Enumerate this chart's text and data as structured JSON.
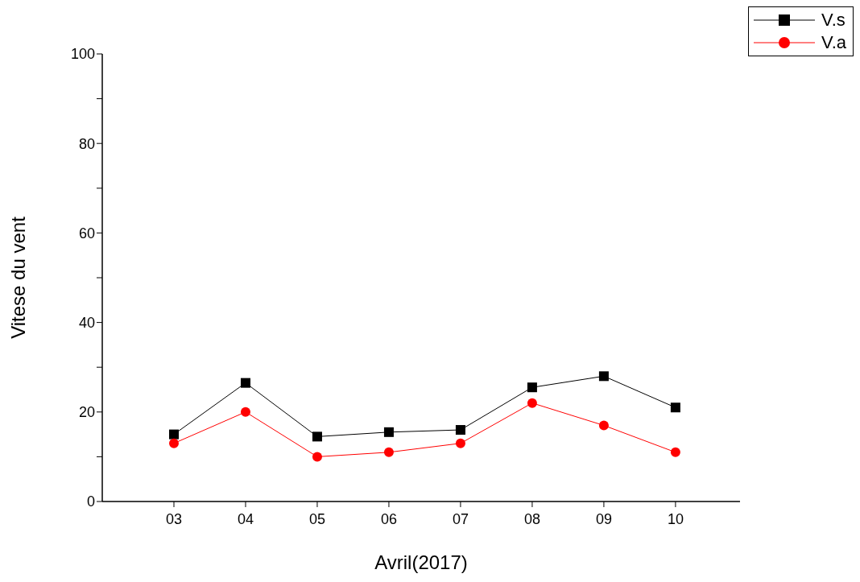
{
  "chart_data": {
    "type": "line",
    "xlabel": "Avril(2017)",
    "ylabel": "Vitese du vent",
    "x": [
      3,
      4,
      5,
      6,
      7,
      8,
      9,
      10
    ],
    "xlim": [
      2,
      10.9
    ],
    "xticks": [
      {
        "value": 3,
        "label": "03"
      },
      {
        "value": 4,
        "label": "04"
      },
      {
        "value": 5,
        "label": "05"
      },
      {
        "value": 6,
        "label": "06"
      },
      {
        "value": 7,
        "label": "07"
      },
      {
        "value": 8,
        "label": "08"
      },
      {
        "value": 9,
        "label": "09"
      },
      {
        "value": 10,
        "label": "10"
      }
    ],
    "ylim": [
      0,
      100
    ],
    "yticks": [
      0,
      {
        "value": 10,
        "label": null
      },
      20,
      {
        "value": 30,
        "label": null
      },
      40,
      {
        "value": 50,
        "label": null
      },
      60,
      {
        "value": 70,
        "label": null
      },
      80,
      {
        "value": 90,
        "label": null
      },
      100
    ],
    "legend": "top right",
    "grid": false,
    "line_style": "solid",
    "series": [
      {
        "name": "V.s",
        "color": "#000000",
        "marker": "square",
        "values": [
          15,
          26.5,
          14.5,
          15.5,
          16,
          25.5,
          28,
          21
        ]
      },
      {
        "name": "V.a",
        "color": "#ff0000",
        "marker": "circle",
        "values": [
          13,
          20,
          10,
          11,
          13,
          22,
          17,
          11
        ]
      }
    ]
  }
}
